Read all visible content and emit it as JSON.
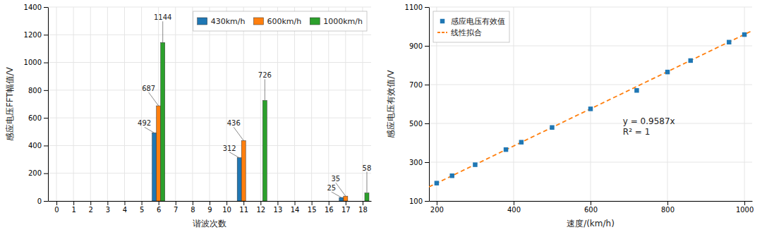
{
  "chart_data": [
    {
      "type": "bar",
      "xlabel": "谐波次数",
      "ylabel": "感应电压FFT幅值/V",
      "xlim": [
        -0.5,
        18.5
      ],
      "xticks": [
        0,
        1,
        2,
        3,
        4,
        5,
        6,
        7,
        8,
        9,
        10,
        11,
        12,
        13,
        14,
        15,
        16,
        17,
        18
      ],
      "ylim": [
        0,
        1400
      ],
      "yticks": [
        0,
        200,
        400,
        600,
        800,
        1000,
        1200,
        1400
      ],
      "grid": true,
      "legend": "upper right",
      "data_labels": true,
      "series": [
        {
          "name": "430km/h",
          "x": [
            6,
            11,
            17
          ],
          "values": [
            492,
            312,
            25
          ]
        },
        {
          "name": "600km/h",
          "x": [
            6,
            11,
            17
          ],
          "values": [
            687,
            436,
            35
          ]
        },
        {
          "name": "1000km/h",
          "x": [
            6,
            12,
            18
          ],
          "values": [
            1144,
            726,
            58
          ]
        }
      ]
    },
    {
      "type": "scatter",
      "xlabel": "速度/(km/h)",
      "ylabel": "感应电压有效值/V",
      "xlim": [
        180,
        1020
      ],
      "xticks": [
        200,
        400,
        600,
        800,
        1000
      ],
      "ylim": [
        100,
        1100
      ],
      "yticks": [
        100,
        300,
        500,
        700,
        900,
        1100
      ],
      "grid": true,
      "legend": "upper left",
      "annotations": [
        "y = 0.9587x",
        "R² = 1"
      ],
      "series": [
        {
          "name": "感应电压有效值",
          "type": "scatter",
          "marker": "square",
          "x": [
            200,
            240,
            300,
            380,
            420,
            500,
            600,
            720,
            800,
            860,
            960,
            1000
          ],
          "values": [
            192,
            230,
            287,
            365,
            403,
            479,
            575,
            670,
            765,
            824,
            919,
            958
          ]
        },
        {
          "name": "线性拟合",
          "type": "line",
          "line_style": "dashed",
          "x": [
            180,
            1020
          ],
          "values": [
            172.566,
            977.874
          ]
        }
      ]
    }
  ]
}
